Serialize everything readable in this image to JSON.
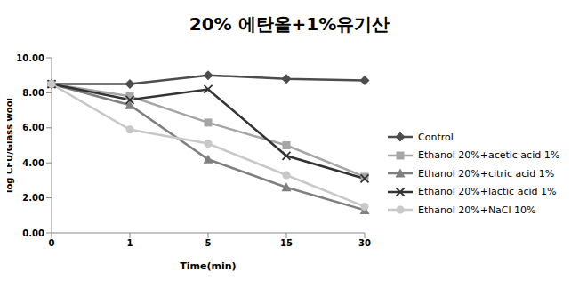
{
  "chart_data": {
    "type": "line",
    "title": "20% 에탄올+1%유기산",
    "x_label": "Time(min)",
    "y_label": "log CFU/Glass wool",
    "categories": [
      "0",
      "1",
      "5",
      "15",
      "30"
    ],
    "ylim": [
      0,
      10
    ],
    "yticks": [
      {
        "value": 0,
        "label": "0.00"
      },
      {
        "value": 2,
        "label": "2.00"
      },
      {
        "value": 4,
        "label": "4.00"
      },
      {
        "value": 6,
        "label": "6.00"
      },
      {
        "value": 8,
        "label": "8.00"
      },
      {
        "value": 10,
        "label": "10.00"
      }
    ],
    "grid": false,
    "legend": "right",
    "series": [
      {
        "name": "Control",
        "color": "#4d4d4d",
        "marker": "diamond",
        "values": [
          8.5,
          8.5,
          9.0,
          8.8,
          8.7
        ]
      },
      {
        "name": "Ethanol 20%+acetic acid 1%",
        "color": "#a6a6a6",
        "marker": "square",
        "values": [
          8.5,
          7.8,
          6.3,
          5.0,
          3.2
        ]
      },
      {
        "name": "Ethanol 20%+citric acid 1%",
        "color": "#7f7f7f",
        "marker": "triangle",
        "values": [
          8.5,
          7.3,
          4.2,
          2.6,
          1.3
        ]
      },
      {
        "name": "Ethanol 20%+lactic acid 1%",
        "color": "#333333",
        "marker": "x",
        "values": [
          8.5,
          7.6,
          8.2,
          4.4,
          3.1
        ]
      },
      {
        "name": "Ethanol 20%+NaCl 10%",
        "color": "#c8c8c8",
        "marker": "circle",
        "values": [
          8.5,
          5.9,
          5.1,
          3.3,
          1.5
        ]
      }
    ]
  }
}
